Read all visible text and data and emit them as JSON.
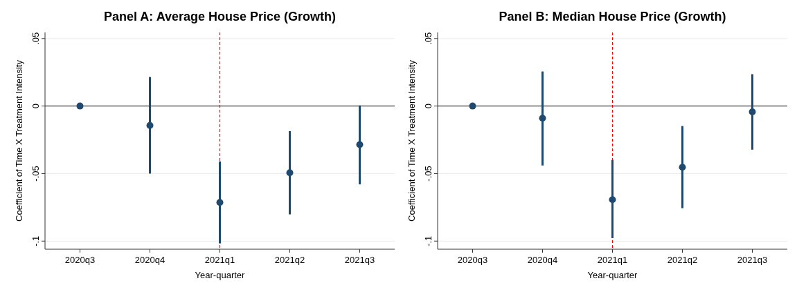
{
  "chart_data": [
    {
      "type": "scatter",
      "title": "Panel A: Average House Price (Growth)",
      "xlabel": "Year-quarter",
      "ylabel": "Coefficient of Time X Treatment Intensity",
      "categories": [
        "2020q3",
        "2020q4",
        "2021q1",
        "2021q2",
        "2021q3"
      ],
      "series": [
        {
          "color": "#1f4a70",
          "values": [
            0,
            -0.0144,
            -0.0714,
            -0.0494,
            -0.0286
          ],
          "errors": [
            null,
            [
              -0.05,
              0.0215
            ],
            [
              -0.1017,
              -0.041
            ],
            [
              -0.0802,
              -0.0186
            ],
            [
              -0.058,
              0.0005
            ]
          ]
        }
      ],
      "ylim": [
        -0.106,
        0.0545
      ],
      "yticks": [
        {
          "value": -0.1,
          "label": "-.1"
        },
        {
          "value": -0.05,
          "label": "-.05"
        },
        0,
        {
          "value": 0.05,
          "label": ".05"
        }
      ],
      "grid": "y",
      "marker": "circle",
      "ref_lines": [
        {
          "axis": "y",
          "value": 0,
          "color": "#000000",
          "line_style": "solid"
        },
        {
          "axis": "x",
          "value": "2021q1",
          "color": "#ff0000",
          "line_style": "dashed"
        }
      ]
    },
    {
      "type": "scatter",
      "title": "Panel B: Median House Price (Growth)",
      "xlabel": "Year-quarter",
      "ylabel": "Coefficient of Time X Treatment Intensity",
      "categories": [
        "2020q3",
        "2020q4",
        "2021q1",
        "2021q2",
        "2021q3"
      ],
      "series": [
        {
          "color": "#1f4a70",
          "values": [
            0,
            -0.009,
            -0.0693,
            -0.0453,
            -0.0043
          ],
          "errors": [
            null,
            [
              -0.044,
              0.0256
            ],
            [
              -0.0978,
              -0.04
            ],
            [
              -0.0756,
              -0.0148
            ],
            [
              -0.0323,
              0.0236
            ]
          ]
        }
      ],
      "ylim": [
        -0.106,
        0.0545
      ],
      "yticks": [
        {
          "value": -0.1,
          "label": "-.1"
        },
        {
          "value": -0.05,
          "label": "-.05"
        },
        0,
        {
          "value": 0.05,
          "label": ".05"
        }
      ],
      "grid": "y",
      "marker": "circle",
      "ref_lines": [
        {
          "axis": "y",
          "value": 0,
          "color": "#000000",
          "line_style": "solid"
        },
        {
          "axis": "x",
          "value": "2021q1",
          "color": "#ff0000",
          "line_style": "dashed"
        }
      ]
    }
  ]
}
